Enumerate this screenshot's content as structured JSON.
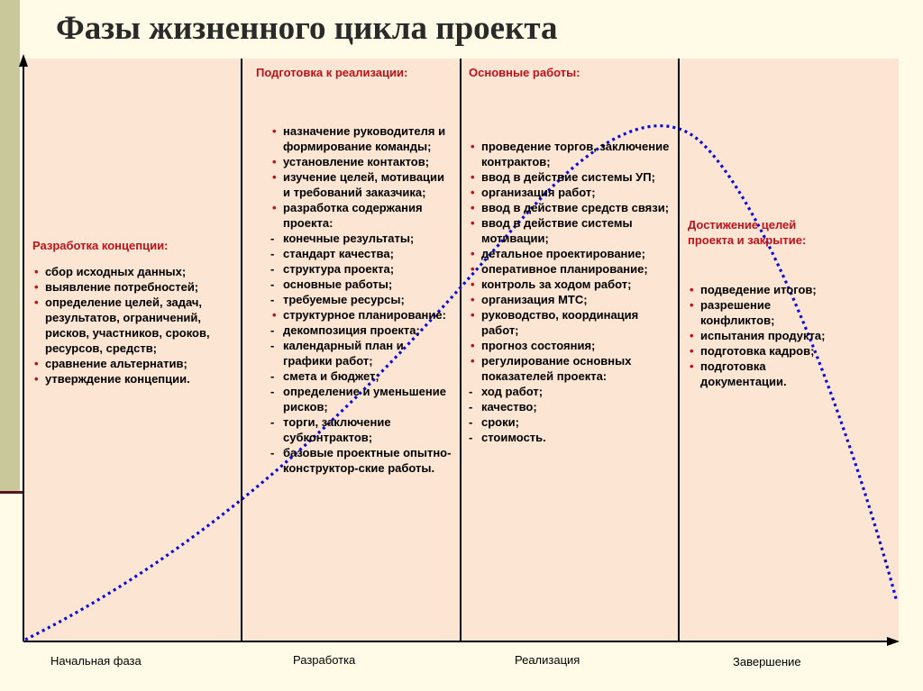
{
  "title": "Фазы жизненного цикла проекта",
  "colors": {
    "header": "#c0101a",
    "curve": "#0a0ad8",
    "panel": "#fce5d3",
    "background": "#fffbe6"
  },
  "columns": [
    {
      "header": "Разработка концепции:",
      "items": [
        {
          "m": "•",
          "t": "сбор исходных данных;"
        },
        {
          "m": "•",
          "t": "выявление потребностей;"
        },
        {
          "m": "•",
          "t": "определение целей, задач, результатов, ограничений, рисков, участников, сроков, ресурсов, средств;"
        },
        {
          "m": "•",
          "t": "сравнение альтернатив;"
        },
        {
          "m": "•",
          "t": "утверждение концепции."
        }
      ]
    },
    {
      "header": "Подготовка к реализации:",
      "items": [
        {
          "m": "•",
          "t": "назначение руководителя и формирование команды;"
        },
        {
          "m": "•",
          "t": "установление контактов;"
        },
        {
          "m": "•",
          "t": "изучение целей, мотивации и требований заказчика;"
        },
        {
          "m": "•",
          "t": "разработка содержания проекта:"
        },
        {
          "m": "-",
          "t": "конечные результаты;"
        },
        {
          "m": "-",
          "t": "стандарт качества;"
        },
        {
          "m": "-",
          "t": "структура проекта;"
        },
        {
          "m": "-",
          "t": "основные работы;"
        },
        {
          "m": "-",
          "t": "требуемые ресурсы;"
        },
        {
          "m": "•",
          "t": "структурное планирование:"
        },
        {
          "m": "-",
          "t": "декомпозиция проекта;"
        },
        {
          "m": "-",
          "t": "календарный план и графики работ;"
        },
        {
          "m": "-",
          "t": "смета и бюджет;"
        },
        {
          "m": "-",
          "t": "определение и уменьшение рисков;"
        },
        {
          "m": "-",
          "t": "торги, заключение субконтрактов;"
        },
        {
          "m": "-",
          "t": "базовые проектные опытно-конструктор-ские работы."
        }
      ]
    },
    {
      "header": "Основные работы:",
      "items": [
        {
          "m": "•",
          "t": "проведение торгов, заключение контрактов;"
        },
        {
          "m": "•",
          "t": "ввод в действие системы УП;"
        },
        {
          "m": "•",
          "t": "организация работ;"
        },
        {
          "m": "•",
          "t": "ввод в действие средств связи;"
        },
        {
          "m": "•",
          "t": "ввод в действие системы мотивации;"
        },
        {
          "m": "•",
          "t": "детальное проектирование;"
        },
        {
          "m": "•",
          "t": "оперативное планирование;"
        },
        {
          "m": "•",
          "t": "контроль за ходом работ;"
        },
        {
          "m": "•",
          "t": "организация МТС;"
        },
        {
          "m": "•",
          "t": "руководство, координация работ;"
        },
        {
          "m": "•",
          "t": "прогноз состояния;"
        },
        {
          "m": "•",
          "t": "регулирование основных показателей проекта:"
        },
        {
          "m": "-",
          "t": "ход работ;"
        },
        {
          "m": "-",
          "t": "качество;"
        },
        {
          "m": "-",
          "t": "сроки;"
        },
        {
          "m": "-",
          "t": "стоимость."
        }
      ]
    },
    {
      "header": "Достижение целей проекта и закрытие:",
      "items": [
        {
          "m": "•",
          "t": "подведение итогов;"
        },
        {
          "m": "•",
          "t": "разрешение конфликтов;"
        },
        {
          "m": "•",
          "t": "испытания продукта;"
        },
        {
          "m": "•",
          "t": "подготовка кадров;"
        },
        {
          "m": "•",
          "t": "подготовка документации."
        }
      ]
    }
  ],
  "phases": [
    "Начальная фаза",
    "Разработка",
    "Реализация",
    "Завершение"
  ]
}
